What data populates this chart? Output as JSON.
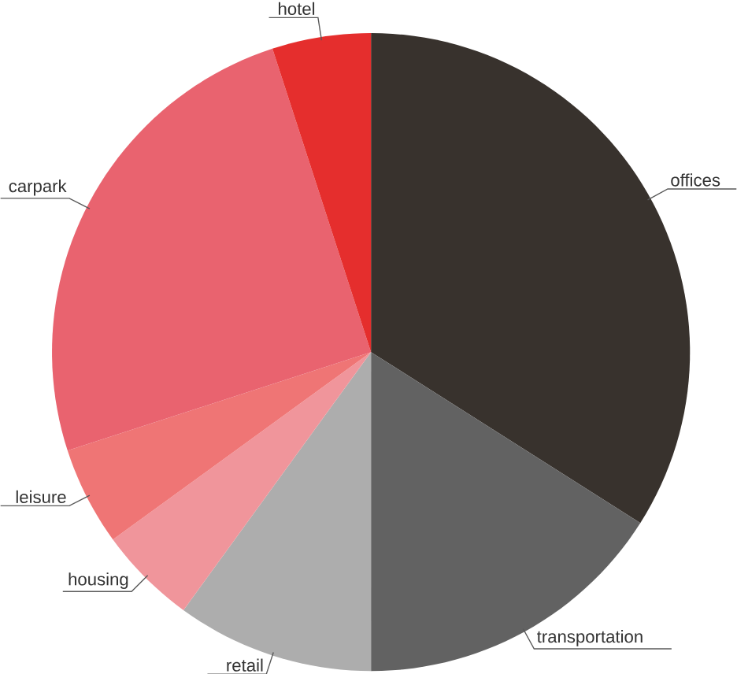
{
  "chart_data": {
    "type": "pie",
    "categories": [
      "offices",
      "transportation",
      "retail",
      "housing",
      "leisure",
      "carpark",
      "hotel"
    ],
    "values": [
      34,
      16,
      10,
      5,
      5,
      25,
      5
    ],
    "colors": [
      "#38322d",
      "#626262",
      "#adadad",
      "#f0959b",
      "#ef7575",
      "#e9636f",
      "#e52e2d"
    ]
  }
}
